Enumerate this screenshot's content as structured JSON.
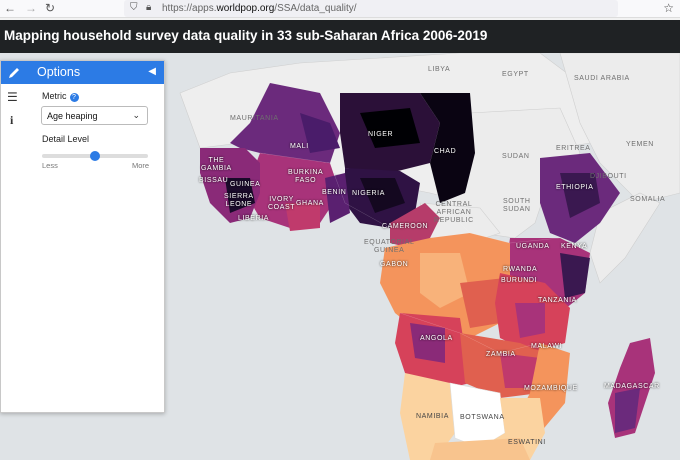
{
  "browser": {
    "url_prefix": "https://apps.",
    "url_domain": "worldpop.org",
    "url_path": "/SSA/data_quality/"
  },
  "page": {
    "title": "Mapping household survey data quality in 33 sub-Saharan Africa 2006-2019"
  },
  "options": {
    "title": "Options",
    "metric_label": "Metric",
    "metric_value": "Age heaping",
    "detail_label": "Detail Level",
    "detail_less": "Less",
    "detail_more": "More",
    "detail_level_fraction": 0.5
  },
  "map_labels": {
    "libya": "LIBYA",
    "egypt": "EGYPT",
    "saudi": "SAUDI ARABIA",
    "mauritania": "MAURITANIA",
    "mali": "MALI",
    "niger": "NIGER",
    "chad": "CHAD",
    "sudan": "SUDAN",
    "eritrea": "ERITREA",
    "yemen": "YEMEN",
    "djibouti": "DJIBOUTI",
    "ethiopia": "ETHIOPIA",
    "burkina": "BURKINA\nFASO",
    "gambia": "THE\nGAMBIA",
    "bissau": "BISSAU",
    "guinea": "GUINEA",
    "sierra": "SIERRA\nLEONE",
    "liberia": "LIBERIA",
    "ivory": "IVORY\nCOAST",
    "ghana": "GHANA",
    "benin": "BENIN",
    "nigeria": "NIGERIA",
    "car": "CENTRAL\nAFRICAN\nREPUBLIC",
    "south_sudan": "SOUTH\nSUDAN",
    "somalia": "SOMALIA",
    "cameroon": "CAMEROON",
    "eq_guinea": "EQUATORIAL\nGUINEA",
    "gabon": "GABON",
    "uganda": "UGANDA",
    "kenya": "KENYA",
    "rwanda": "RWANDA",
    "burundi": "BURUNDI",
    "tanzania": "TANZANIA",
    "angola": "ANGOLA",
    "zambia": "ZAMBIA",
    "malawi": "MALAWI",
    "mozambique": "MOZAMBIQUE",
    "madagascar": "MADAGASCAR",
    "namibia": "NAMIBIA",
    "botswana": "BOTSWANA",
    "eswatini": "ESWATINI"
  },
  "colors": {
    "accent": "#2c7be5",
    "title_bar": "#1f2224",
    "scale_low": "#fbd3a0",
    "scale_mid_low": "#f4945c",
    "scale_mid": "#d6425a",
    "scale_mid_high": "#8a2a78",
    "scale_high": "#3a1850",
    "scale_max": "#000004"
  }
}
